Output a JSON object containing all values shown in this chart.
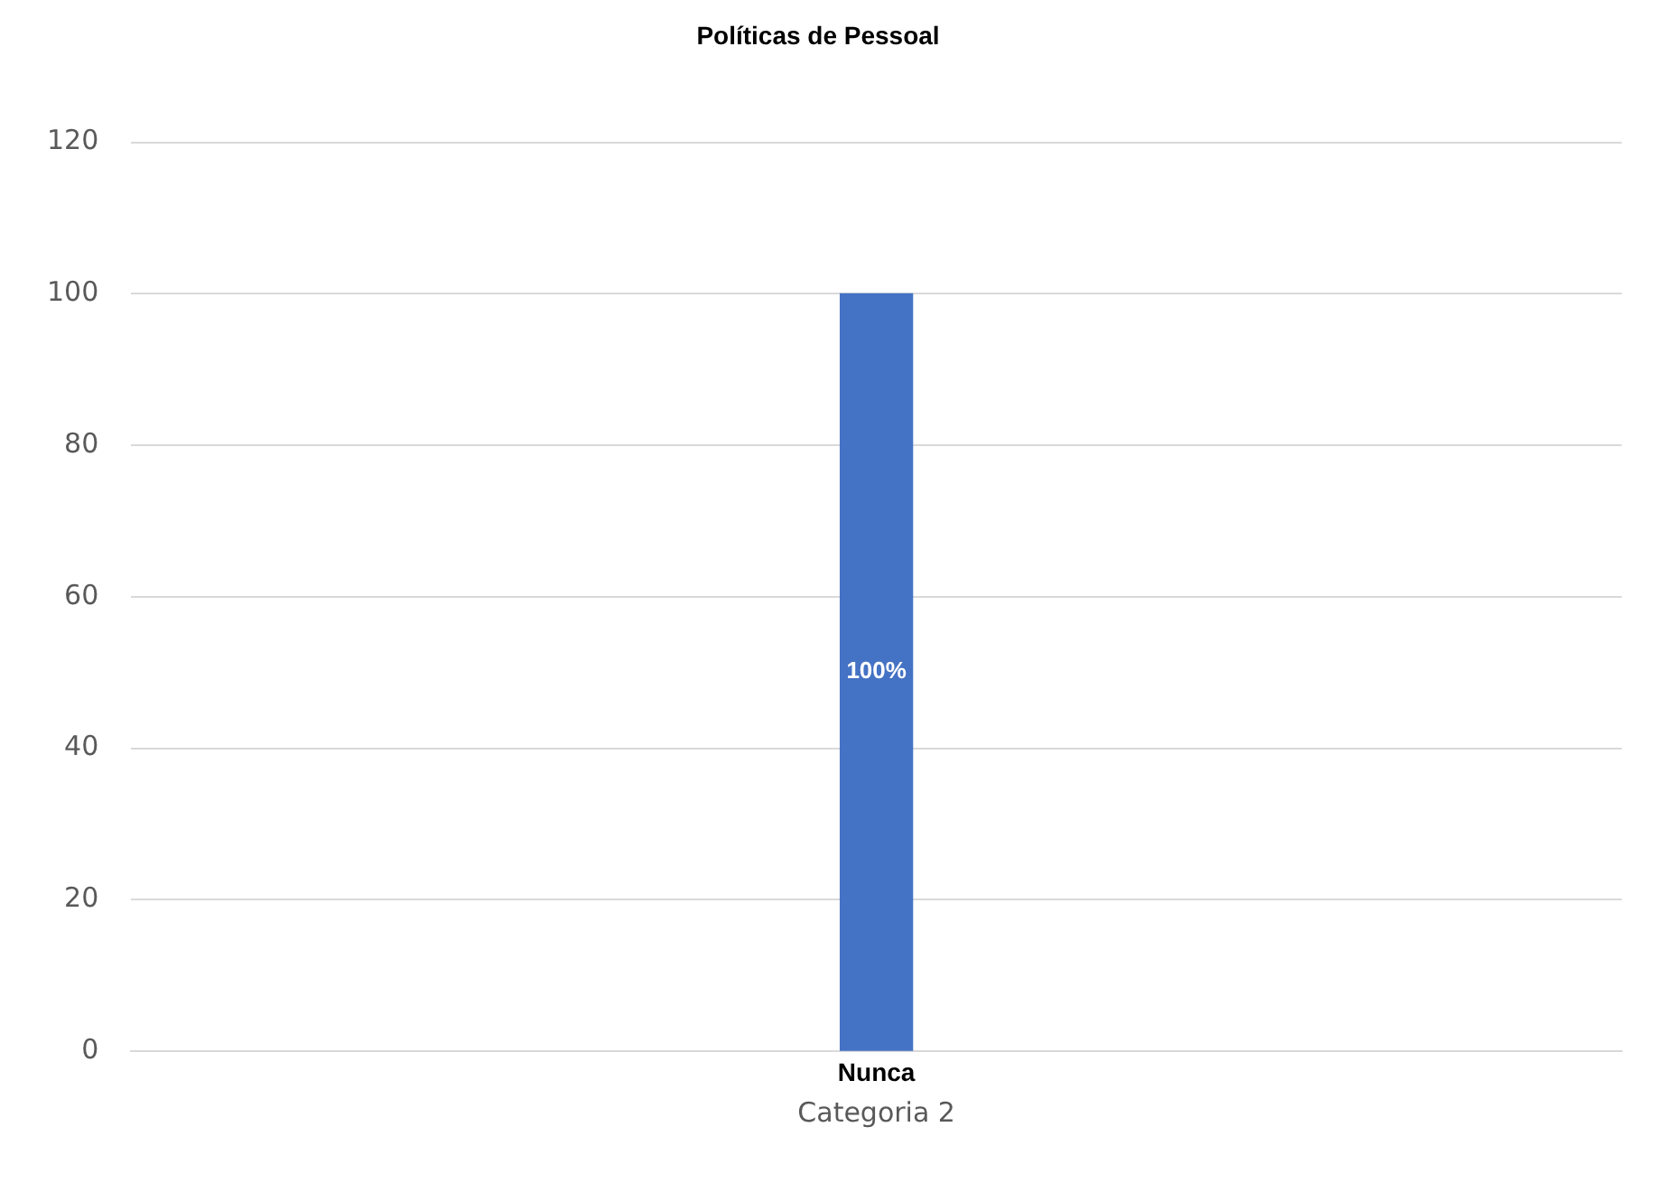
{
  "chart_data": {
    "type": "bar",
    "title": "Políticas de Pessoal",
    "categories": [
      "Categoria 2"
    ],
    "series": [
      {
        "name": "Nunca",
        "color": "#4472c4",
        "values": [
          100
        ],
        "value_labels": [
          "100%"
        ]
      }
    ],
    "ylim": [
      0,
      120
    ],
    "yticks": [
      0,
      20,
      40,
      60,
      80,
      100,
      120
    ],
    "grid": "y",
    "legend": false
  }
}
